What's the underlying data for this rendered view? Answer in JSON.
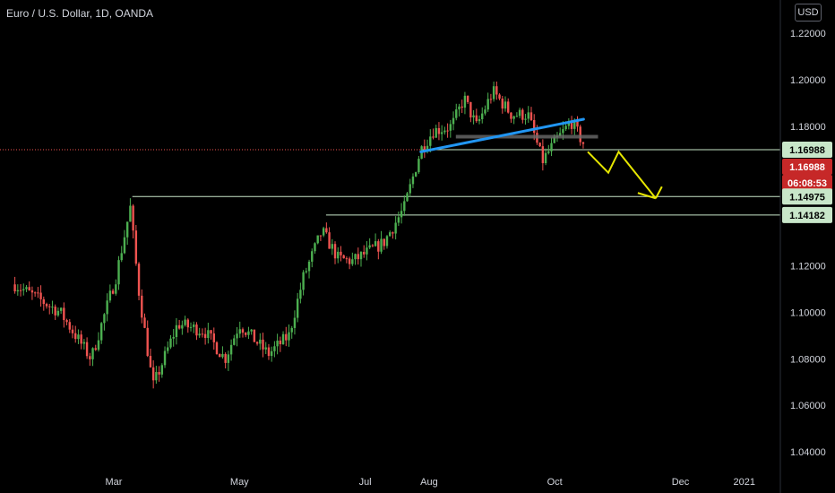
{
  "header": {
    "title": "Euro / U.S. Dollar, 1D, OANDA",
    "currency": "USD"
  },
  "colors": {
    "up": "#26a69a",
    "up_candle": "#4caf50",
    "down": "#ef5350",
    "trendline": "#2196f3",
    "arrow": "#e6e600",
    "level_line": "#c8e6c9",
    "price_tag": "#c62828",
    "level_tag_bg": "#c8e6c9"
  },
  "chart_data": {
    "type": "candlestick",
    "symbol": "EURUSD",
    "timeframe": "1D",
    "y_ticks": [
      "1.22000",
      "1.20000",
      "1.18000",
      "1.12000",
      "1.10000",
      "1.08000",
      "1.06000",
      "1.04000"
    ],
    "x_ticks": [
      "Mar",
      "May",
      "Jul",
      "Aug",
      "Oct",
      "Dec",
      "2021"
    ],
    "ylim": [
      1.0305,
      1.2285
    ],
    "grid": false,
    "path_points": [
      [
        "2020-01-13",
        1.112
      ],
      [
        "2020-01-24",
        1.106
      ],
      [
        "2020-02-04",
        1.1
      ],
      [
        "2020-02-19",
        1.08
      ],
      [
        "2020-03-02",
        1.115
      ],
      [
        "2020-03-09",
        1.145
      ],
      [
        "2020-03-13",
        1.11
      ],
      [
        "2020-03-20",
        1.068
      ],
      [
        "2020-04-01",
        1.095
      ],
      [
        "2020-04-14",
        1.092
      ],
      [
        "2020-04-24",
        1.08
      ],
      [
        "2020-05-01",
        1.095
      ],
      [
        "2020-05-15",
        1.082
      ],
      [
        "2020-05-25",
        1.09
      ],
      [
        "2020-06-01",
        1.115
      ],
      [
        "2020-06-10",
        1.135
      ],
      [
        "2020-06-18",
        1.123
      ],
      [
        "2020-06-25",
        1.122
      ],
      [
        "2020-07-10",
        1.13
      ],
      [
        "2020-07-20",
        1.145
      ],
      [
        "2020-07-28",
        1.17
      ],
      [
        "2020-08-03",
        1.178
      ],
      [
        "2020-08-12",
        1.18
      ],
      [
        "2020-08-18",
        1.192
      ],
      [
        "2020-08-24",
        1.18
      ],
      [
        "2020-09-01",
        1.195
      ],
      [
        "2020-09-10",
        1.185
      ],
      [
        "2020-09-18",
        1.185
      ],
      [
        "2020-09-25",
        1.165
      ],
      [
        "2020-10-01",
        1.173
      ],
      [
        "2020-10-09",
        1.182
      ],
      [
        "2020-10-14",
        1.174
      ],
      [
        "2020-10-16",
        1.171
      ]
    ],
    "annotations": {
      "trendline": {
        "from": [
          "2020-07-28",
          1.169
        ],
        "to": [
          "2020-10-15",
          1.183
        ]
      },
      "resistance_zone": {
        "from": "2020-08-14",
        "to": "2020-10-22",
        "level": 1.1755
      },
      "horizontal_levels": [
        {
          "start": "2020-03-10",
          "price": 1.14975,
          "label": "1.14975"
        },
        {
          "start": "2020-06-12",
          "price": 1.14182,
          "label": "1.14182"
        }
      ],
      "projection_arrow": [
        [
          "2020-10-17",
          1.169
        ],
        [
          "2020-10-27",
          1.16
        ],
        [
          "2020-11-01",
          1.169
        ],
        [
          "2020-11-19",
          1.149
        ],
        [
          "2020-11-22",
          1.154
        ]
      ]
    },
    "price_tags": {
      "last_line_label": "1.16988",
      "current_price": "1.16988",
      "countdown": "06:08:53",
      "level_1": "1.14975",
      "level_2": "1.14182"
    }
  }
}
